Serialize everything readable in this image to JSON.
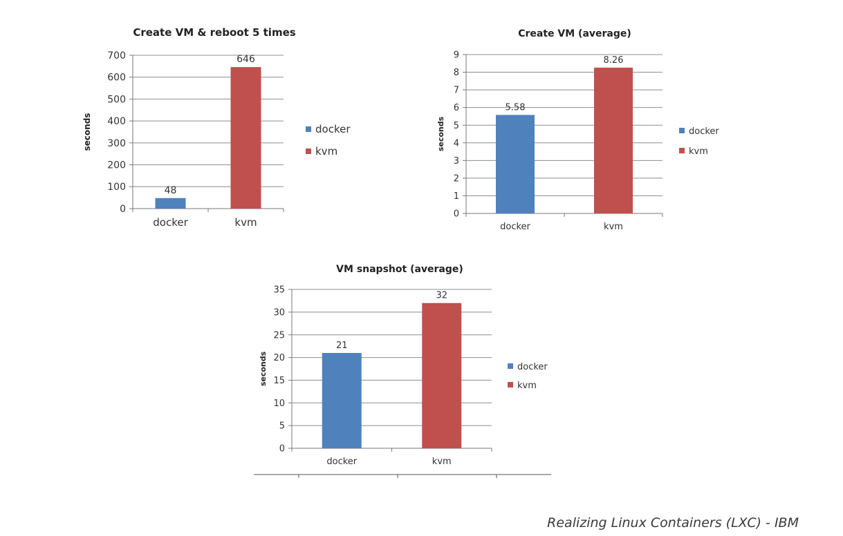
{
  "chart_data": [
    {
      "type": "bar",
      "title": "Create VM & reboot 5 times",
      "ylabel": "seconds",
      "xlabel": "",
      "categories": [
        "docker",
        "kvm"
      ],
      "values": [
        48,
        646
      ],
      "data_labels": [
        "48",
        "646"
      ],
      "ylim": [
        0,
        700
      ],
      "yticks": [
        0,
        100,
        200,
        300,
        400,
        500,
        600,
        700
      ],
      "colors": [
        "#4f81bd",
        "#c0504d"
      ],
      "legend": [
        "docker",
        "kvm"
      ],
      "legend_position": "right",
      "grid": true
    },
    {
      "type": "bar",
      "title": "Create VM (average)",
      "ylabel": "seconds",
      "xlabel": "",
      "categories": [
        "docker",
        "kvm"
      ],
      "values": [
        5.58,
        8.26
      ],
      "data_labels": [
        "5.58",
        "8.26"
      ],
      "ylim": [
        0,
        9
      ],
      "yticks": [
        0,
        1,
        2,
        3,
        4,
        5,
        6,
        7,
        8,
        9
      ],
      "colors": [
        "#4f81bd",
        "#c0504d"
      ],
      "legend": [
        "docker",
        "kvm"
      ],
      "legend_position": "right",
      "grid": true
    },
    {
      "type": "bar",
      "title": "VM snapshot (average)",
      "ylabel": "seconds",
      "xlabel": "",
      "categories": [
        "docker",
        "kvm"
      ],
      "values": [
        21,
        32
      ],
      "data_labels": [
        "21",
        "32"
      ],
      "ylim": [
        0,
        35
      ],
      "yticks": [
        0,
        5,
        10,
        15,
        20,
        25,
        30,
        35
      ],
      "colors": [
        "#4f81bd",
        "#c0504d"
      ],
      "legend": [
        "docker",
        "kvm"
      ],
      "legend_position": "right",
      "grid": true
    }
  ],
  "credit": "Realizing Linux Containers (LXC) - IBM"
}
